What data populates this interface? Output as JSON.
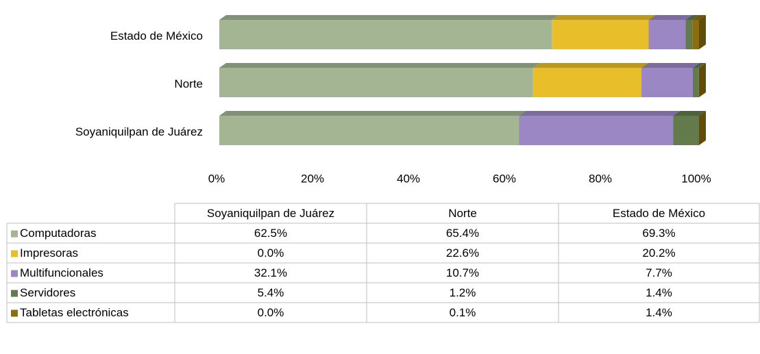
{
  "chart_data": {
    "type": "stacked_bar_3d",
    "orientation": "horizontal",
    "categories": [
      "Soyaniquilpan de Juárez",
      "Norte",
      "Estado de México"
    ],
    "series": [
      {
        "name": "Computadoras",
        "color": "#a3b592",
        "values": [
          62.5,
          65.4,
          69.3
        ],
        "value_labels": [
          "62.5%",
          "65.4%",
          "69.3%"
        ]
      },
      {
        "name": "Impresoras",
        "color": "#e8bf2a",
        "values": [
          0.0,
          22.6,
          20.2
        ],
        "value_labels": [
          "0.0%",
          "22.6%",
          "20.2%"
        ]
      },
      {
        "name": "Multifuncionales",
        "color": "#9b87c4",
        "values": [
          32.1,
          10.7,
          7.7
        ],
        "value_labels": [
          "32.1%",
          "10.7%",
          "7.7%"
        ]
      },
      {
        "name": "Servidores",
        "color": "#627a4c",
        "values": [
          5.4,
          1.2,
          1.4
        ],
        "value_labels": [
          "5.4%",
          "1.2%",
          "1.4%"
        ]
      },
      {
        "name": "Tabletas electrónicas",
        "color": "#8c6d10",
        "values": [
          0.0,
          0.1,
          1.4
        ],
        "value_labels": [
          "0.0%",
          "0.1%",
          "1.4%"
        ]
      }
    ],
    "xlim": [
      0,
      100
    ],
    "xticks": [
      {
        "value": 0,
        "label": "0%"
      },
      {
        "value": 20,
        "label": "20%"
      },
      {
        "value": 40,
        "label": "40%"
      },
      {
        "value": 60,
        "label": "60%"
      },
      {
        "value": 80,
        "label": "80%"
      },
      {
        "value": 100,
        "label": "100%"
      }
    ],
    "data_table": true
  }
}
